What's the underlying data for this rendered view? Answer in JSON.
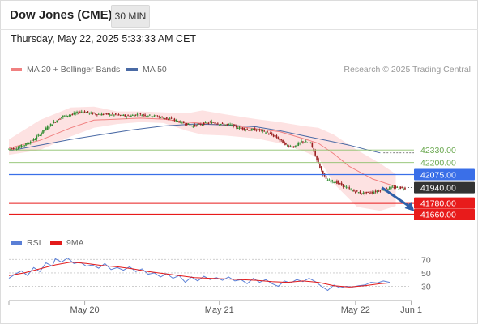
{
  "header": {
    "title": "Dow Jones (CME)",
    "timeframe_button": "30 MIN",
    "datetime": "Thursday, May 22, 2025 5:33:33 AM CET"
  },
  "legend": {
    "ma20_label": "MA 20 + Bollinger Bands",
    "ma50_label": "MA 50",
    "rsi_label": "RSI",
    "ma9_label": "9MA",
    "credit": "Research © 2025 Trading Central"
  },
  "colors": {
    "bollinger_fill": "#fde2e2",
    "ma20": "#f08080",
    "ma50": "#4a6aa5",
    "support_resistance_green": "#8cc06a",
    "pivot_blue": "#3a6fe8",
    "support_red": "#e81b1b",
    "last_price_black": "#333333",
    "candle_up": "#2e8b2e",
    "candle_down": "#9a1f1f",
    "rsi_line": "#5a7fd6",
    "rsi_ma9": "#e31a1a",
    "arrow": "#2f5fa8"
  },
  "chart_data": [
    {
      "type": "candlestick",
      "title": "Dow Jones (CME)",
      "x_tick_labels": [
        "May 20",
        "May 21",
        "May 22",
        "Jun 1"
      ],
      "y_range": [
        41550,
        42920
      ],
      "levels": [
        {
          "label": "42330.00",
          "value": 42330,
          "kind": "resistance"
        },
        {
          "label": "42200.00",
          "value": 42200,
          "kind": "resistance"
        },
        {
          "label": "42075.00",
          "value": 42075,
          "kind": "pivot"
        },
        {
          "label": "41940.00",
          "value": 41940,
          "kind": "last"
        },
        {
          "label": "41780.00",
          "value": 41780,
          "kind": "support"
        },
        {
          "label": "41660.00",
          "value": 41660,
          "kind": "support"
        }
      ],
      "price_path": [
        [
          0,
          42340
        ],
        [
          6,
          42350
        ],
        [
          12,
          42390
        ],
        [
          18,
          42450
        ],
        [
          24,
          42540
        ],
        [
          30,
          42620
        ],
        [
          36,
          42680
        ],
        [
          42,
          42700
        ],
        [
          48,
          42730
        ],
        [
          54,
          42710
        ],
        [
          60,
          42700
        ],
        [
          66,
          42700
        ],
        [
          72,
          42690
        ],
        [
          78,
          42680
        ],
        [
          84,
          42700
        ],
        [
          90,
          42690
        ],
        [
          96,
          42680
        ],
        [
          102,
          42660
        ],
        [
          108,
          42640
        ],
        [
          114,
          42610
        ],
        [
          120,
          42580
        ],
        [
          126,
          42600
        ],
        [
          132,
          42620
        ],
        [
          138,
          42600
        ],
        [
          144,
          42590
        ],
        [
          150,
          42560
        ],
        [
          156,
          42540
        ],
        [
          162,
          42540
        ],
        [
          168,
          42510
        ],
        [
          174,
          42460
        ],
        [
          180,
          42380
        ],
        [
          186,
          42360
        ],
        [
          190,
          42420
        ],
        [
          196,
          42400
        ],
        [
          202,
          42150
        ],
        [
          206,
          42020
        ],
        [
          212,
          42000
        ],
        [
          218,
          41950
        ],
        [
          224,
          41900
        ],
        [
          230,
          41880
        ],
        [
          236,
          41890
        ],
        [
          242,
          41920
        ],
        [
          248,
          41940
        ],
        [
          252,
          41940
        ],
        [
          256,
          41935
        ]
      ],
      "ma20_path": [
        [
          0,
          42350
        ],
        [
          20,
          42430
        ],
        [
          40,
          42560
        ],
        [
          55,
          42640
        ],
        [
          70,
          42650
        ],
        [
          85,
          42660
        ],
        [
          100,
          42650
        ],
        [
          115,
          42620
        ],
        [
          130,
          42600
        ],
        [
          145,
          42580
        ],
        [
          160,
          42550
        ],
        [
          175,
          42520
        ],
        [
          190,
          42450
        ],
        [
          200,
          42400
        ],
        [
          210,
          42290
        ],
        [
          220,
          42160
        ],
        [
          235,
          42030
        ],
        [
          250,
          41950
        ]
      ],
      "ma50_path": [
        [
          0,
          42320
        ],
        [
          40,
          42440
        ],
        [
          80,
          42540
        ],
        [
          100,
          42580
        ],
        [
          120,
          42600
        ],
        [
          140,
          42590
        ],
        [
          160,
          42570
        ],
        [
          175,
          42530
        ],
        [
          190,
          42480
        ],
        [
          205,
          42430
        ],
        [
          220,
          42380
        ],
        [
          232,
          42330
        ],
        [
          240,
          42300
        ]
      ],
      "boll_upper": [
        [
          0,
          42440
        ],
        [
          20,
          42640
        ],
        [
          40,
          42770
        ],
        [
          55,
          42780
        ],
        [
          70,
          42730
        ],
        [
          85,
          42730
        ],
        [
          100,
          42720
        ],
        [
          115,
          42710
        ],
        [
          125,
          42740
        ],
        [
          140,
          42700
        ],
        [
          160,
          42650
        ],
        [
          175,
          42620
        ],
        [
          190,
          42580
        ],
        [
          200,
          42560
        ],
        [
          210,
          42490
        ],
        [
          225,
          42330
        ],
        [
          240,
          42190
        ],
        [
          250,
          42080
        ]
      ],
      "boll_lower": [
        [
          0,
          42280
        ],
        [
          20,
          42330
        ],
        [
          40,
          42470
        ],
        [
          55,
          42560
        ],
        [
          70,
          42600
        ],
        [
          85,
          42620
        ],
        [
          100,
          42610
        ],
        [
          115,
          42530
        ],
        [
          125,
          42490
        ],
        [
          140,
          42480
        ],
        [
          160,
          42450
        ],
        [
          175,
          42400
        ],
        [
          190,
          42320
        ],
        [
          200,
          42250
        ],
        [
          210,
          41980
        ],
        [
          225,
          41740
        ],
        [
          240,
          41700
        ],
        [
          250,
          41750
        ]
      ],
      "forecast_arrow": {
        "from": [
          241,
          41940
        ],
        "to": [
          261,
          41710
        ]
      }
    },
    {
      "type": "line",
      "title": "RSI",
      "y_range": [
        15,
        80
      ],
      "y_tick_labels": [
        "70",
        "50",
        "30"
      ],
      "y_ticks": [
        70,
        50,
        30
      ],
      "series": [
        {
          "name": "RSI",
          "values": [
            [
              0,
              42
            ],
            [
              4,
              48
            ],
            [
              8,
              53
            ],
            [
              12,
              46
            ],
            [
              16,
              58
            ],
            [
              20,
              52
            ],
            [
              24,
              65
            ],
            [
              28,
              60
            ],
            [
              30,
              71
            ],
            [
              34,
              66
            ],
            [
              38,
              72
            ],
            [
              42,
              64
            ],
            [
              46,
              66
            ],
            [
              50,
              60
            ],
            [
              54,
              62
            ],
            [
              58,
              57
            ],
            [
              62,
              64
            ],
            [
              66,
              55
            ],
            [
              70,
              58
            ],
            [
              74,
              54
            ],
            [
              78,
              59
            ],
            [
              82,
              52
            ],
            [
              86,
              56
            ],
            [
              90,
              48
            ],
            [
              94,
              50
            ],
            [
              98,
              44
            ],
            [
              102,
              49
            ],
            [
              106,
              42
            ],
            [
              110,
              46
            ],
            [
              114,
              36
            ],
            [
              118,
              44
            ],
            [
              122,
              38
            ],
            [
              126,
              45
            ],
            [
              130,
              40
            ],
            [
              134,
              43
            ],
            [
              138,
              39
            ],
            [
              142,
              44
            ],
            [
              146,
              38
            ],
            [
              150,
              40
            ],
            [
              154,
              34
            ],
            [
              158,
              42
            ],
            [
              162,
              36
            ],
            [
              166,
              40
            ],
            [
              170,
              34
            ],
            [
              174,
              30
            ],
            [
              178,
              38
            ],
            [
              182,
              35
            ],
            [
              186,
              40
            ],
            [
              190,
              37
            ],
            [
              194,
              42
            ],
            [
              198,
              37
            ],
            [
              202,
              30
            ],
            [
              206,
              24
            ],
            [
              210,
              32
            ],
            [
              214,
              28
            ],
            [
              218,
              30
            ],
            [
              222,
              29
            ],
            [
              226,
              31
            ],
            [
              230,
              32
            ],
            [
              234,
              36
            ],
            [
              238,
              35
            ],
            [
              242,
              38
            ],
            [
              246,
              36
            ]
          ]
        },
        {
          "name": "9MA",
          "values": [
            [
              0,
              46
            ],
            [
              10,
              50
            ],
            [
              20,
              56
            ],
            [
              30,
              62
            ],
            [
              40,
              66
            ],
            [
              50,
              64
            ],
            [
              60,
              61
            ],
            [
              70,
              59
            ],
            [
              80,
              56
            ],
            [
              90,
              52
            ],
            [
              100,
              49
            ],
            [
              110,
              46
            ],
            [
              120,
              43
            ],
            [
              130,
              42
            ],
            [
              140,
              41
            ],
            [
              150,
              40
            ],
            [
              160,
              39
            ],
            [
              170,
              37
            ],
            [
              180,
              36
            ],
            [
              190,
              38
            ],
            [
              200,
              36
            ],
            [
              210,
              31
            ],
            [
              220,
              29
            ],
            [
              230,
              31
            ],
            [
              240,
              34
            ],
            [
              246,
              35
            ]
          ]
        }
      ]
    }
  ]
}
